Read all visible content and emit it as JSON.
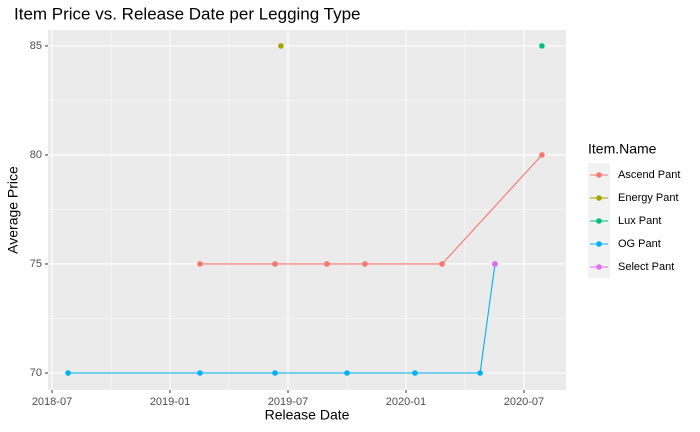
{
  "chart_data": {
    "type": "line",
    "title": "Item Price vs. Release Date per Legging Type",
    "x_label": "Release Date",
    "y_label": "Average Price",
    "legend_title": "Item.Name",
    "legend_position": "right",
    "grid": true,
    "background": "#EBEBEB",
    "xlim": [
      2018.483,
      2020.678
    ],
    "xticks": [
      {
        "value": 2018.5,
        "label": "2018-07"
      },
      {
        "value": 2019.0,
        "label": "2019-01"
      },
      {
        "value": 2019.5,
        "label": "2019-07"
      },
      {
        "value": 2020.0,
        "label": "2020-01"
      },
      {
        "value": 2020.5,
        "label": "2020-07"
      }
    ],
    "ylim": [
      69.22,
      85.73
    ],
    "yticks": [
      70,
      75,
      80,
      85
    ],
    "series": [
      {
        "name": "Ascend Pant",
        "color": "#F8766D",
        "x": [
          2019.127,
          2019.445,
          2019.665,
          2019.826,
          2020.153,
          2020.576
        ],
        "values": [
          75,
          75,
          75,
          75,
          75,
          80
        ]
      },
      {
        "name": "Energy Pant",
        "color": "#A3A500",
        "x": [
          2019.47
        ],
        "values": [
          85
        ]
      },
      {
        "name": "Lux Pant",
        "color": "#00BF7D",
        "x": [
          2020.576
        ],
        "values": [
          85
        ]
      },
      {
        "name": "OG Pant",
        "color": "#00B0F6",
        "x": [
          2018.568,
          2019.127,
          2019.445,
          2019.75,
          2020.038,
          2020.314,
          2020.377
        ],
        "values": [
          70,
          70,
          70,
          70,
          70,
          70,
          75
        ]
      },
      {
        "name": "Select Pant",
        "color": "#E76BF3",
        "x": [
          2020.377
        ],
        "values": [
          75
        ]
      }
    ]
  }
}
